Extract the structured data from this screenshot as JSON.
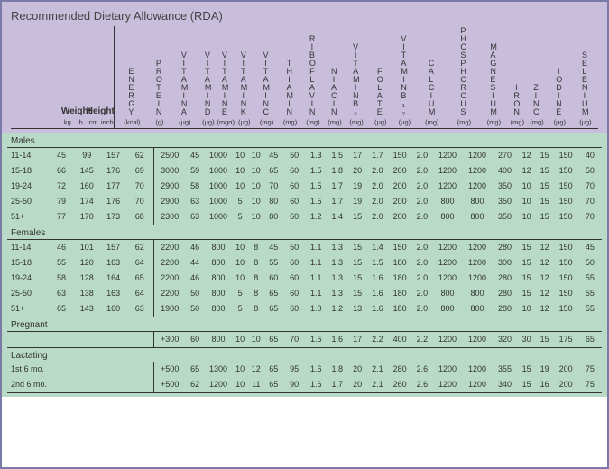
{
  "title": "Recommended Dietary Allowance (RDA)",
  "weight_label": "Weight",
  "height_label": "Height",
  "col_weight_kg": "kg",
  "col_weight_lb": "lb",
  "col_height_cm": "cm",
  "col_height_in": "inch",
  "nutrients": [
    "ENERGY",
    "PROTEIN",
    "VITAMIN A",
    "VITAMIN D",
    "VITAMIN E",
    "VITAMIN K",
    "VITAMIN C",
    "THIAMIN",
    "RIBOFLAVIN",
    "NIACIN",
    "VITAMIN B₆",
    "FOLATE",
    "VITAMIN B₁₂",
    "CALCIUM",
    "PHOSPHOROUS",
    "MAGNESIUM",
    "IRON",
    "ZINC",
    "IODINE",
    "SELENIUM"
  ],
  "units": [
    "(kcal)",
    "(g)",
    "(μg)",
    "(μg)",
    "(mgα)",
    "(μg)",
    "(mg)",
    "(mg)",
    "(mg)",
    "(mg)",
    "(mg)",
    "(μg)",
    "(μg)",
    "(mg)",
    "(mg)",
    "(mg)",
    "(mg)",
    "(mg)",
    "(μg)",
    "(μg)"
  ],
  "sections": [
    {
      "label": "Males",
      "rows": [
        {
          "age": "11-14",
          "kg": "45",
          "lb": "99",
          "cm": "157",
          "in": "62",
          "v": [
            "2500",
            "45",
            "1000",
            "10",
            "10",
            "45",
            "50",
            "1.3",
            "1.5",
            "17",
            "1.7",
            "150",
            "2.0",
            "1200",
            "1200",
            "270",
            "12",
            "15",
            "150",
            "40"
          ]
        },
        {
          "age": "15-18",
          "kg": "66",
          "lb": "145",
          "cm": "176",
          "in": "69",
          "v": [
            "3000",
            "59",
            "1000",
            "10",
            "10",
            "65",
            "60",
            "1.5",
            "1.8",
            "20",
            "2.0",
            "200",
            "2.0",
            "1200",
            "1200",
            "400",
            "12",
            "15",
            "150",
            "50"
          ]
        },
        {
          "age": "19-24",
          "kg": "72",
          "lb": "160",
          "cm": "177",
          "in": "70",
          "v": [
            "2900",
            "58",
            "1000",
            "10",
            "10",
            "70",
            "60",
            "1.5",
            "1.7",
            "19",
            "2.0",
            "200",
            "2.0",
            "1200",
            "1200",
            "350",
            "10",
            "15",
            "150",
            "70"
          ]
        },
        {
          "age": "25-50",
          "kg": "79",
          "lb": "174",
          "cm": "176",
          "in": "70",
          "v": [
            "2900",
            "63",
            "1000",
            "5",
            "10",
            "80",
            "60",
            "1.5",
            "1.7",
            "19",
            "2.0",
            "200",
            "2.0",
            "800",
            "800",
            "350",
            "10",
            "15",
            "150",
            "70"
          ]
        },
        {
          "age": "51+",
          "kg": "77",
          "lb": "170",
          "cm": "173",
          "in": "68",
          "v": [
            "2300",
            "63",
            "1000",
            "5",
            "10",
            "80",
            "60",
            "1.2",
            "1.4",
            "15",
            "2.0",
            "200",
            "2.0",
            "800",
            "800",
            "350",
            "10",
            "15",
            "150",
            "70"
          ]
        }
      ]
    },
    {
      "label": "Females",
      "rows": [
        {
          "age": "11-14",
          "kg": "46",
          "lb": "101",
          "cm": "157",
          "in": "62",
          "v": [
            "2200",
            "46",
            "800",
            "10",
            "8",
            "45",
            "50",
            "1.1",
            "1.3",
            "15",
            "1.4",
            "150",
            "2.0",
            "1200",
            "1200",
            "280",
            "15",
            "12",
            "150",
            "45"
          ]
        },
        {
          "age": "15-18",
          "kg": "55",
          "lb": "120",
          "cm": "163",
          "in": "64",
          "v": [
            "2200",
            "44",
            "800",
            "10",
            "8",
            "55",
            "60",
            "1.1",
            "1.3",
            "15",
            "1.5",
            "180",
            "2.0",
            "1200",
            "1200",
            "300",
            "15",
            "12",
            "150",
            "50"
          ]
        },
        {
          "age": "19-24",
          "kg": "58",
          "lb": "128",
          "cm": "164",
          "in": "65",
          "v": [
            "2200",
            "46",
            "800",
            "10",
            "8",
            "60",
            "60",
            "1.1",
            "1.3",
            "15",
            "1.6",
            "180",
            "2.0",
            "1200",
            "1200",
            "280",
            "15",
            "12",
            "150",
            "55"
          ]
        },
        {
          "age": "25-50",
          "kg": "63",
          "lb": "138",
          "cm": "163",
          "in": "64",
          "v": [
            "2200",
            "50",
            "800",
            "5",
            "8",
            "65",
            "60",
            "1.1",
            "1.3",
            "15",
            "1.6",
            "180",
            "2.0",
            "800",
            "800",
            "280",
            "15",
            "12",
            "150",
            "55"
          ]
        },
        {
          "age": "51+",
          "kg": "65",
          "lb": "143",
          "cm": "160",
          "in": "63",
          "v": [
            "1900",
            "50",
            "800",
            "5",
            "8",
            "65",
            "60",
            "1.0",
            "1.2",
            "13",
            "1.6",
            "180",
            "2.0",
            "800",
            "800",
            "280",
            "10",
            "12",
            "150",
            "55"
          ]
        }
      ]
    },
    {
      "label": "Pregnant",
      "rows": [
        {
          "age": "",
          "kg": "",
          "lb": "",
          "cm": "",
          "in": "",
          "v": [
            "+300",
            "60",
            "800",
            "10",
            "10",
            "65",
            "70",
            "1.5",
            "1.6",
            "17",
            "2.2",
            "400",
            "2.2",
            "1200",
            "1200",
            "320",
            "30",
            "15",
            "175",
            "65"
          ]
        }
      ]
    },
    {
      "label": "Lactating",
      "rows": [
        {
          "age": "1st 6 mo.",
          "kg": "",
          "lb": "",
          "cm": "",
          "in": "",
          "v": [
            "+500",
            "65",
            "1300",
            "10",
            "12",
            "65",
            "95",
            "1.6",
            "1.8",
            "20",
            "2.1",
            "280",
            "2.6",
            "1200",
            "1200",
            "355",
            "15",
            "19",
            "200",
            "75"
          ]
        },
        {
          "age": "2nd 6 mo.",
          "kg": "",
          "lb": "",
          "cm": "",
          "in": "",
          "v": [
            "+500",
            "62",
            "1200",
            "10",
            "11",
            "65",
            "90",
            "1.6",
            "1.7",
            "20",
            "2.1",
            "260",
            "2.6",
            "1200",
            "1200",
            "340",
            "15",
            "16",
            "200",
            "75"
          ]
        }
      ]
    }
  ],
  "colors": {
    "header_bg": "#c8bddb",
    "body_bg": "#b8dac7",
    "border": "#7a7aa8",
    "rule": "#333333"
  }
}
